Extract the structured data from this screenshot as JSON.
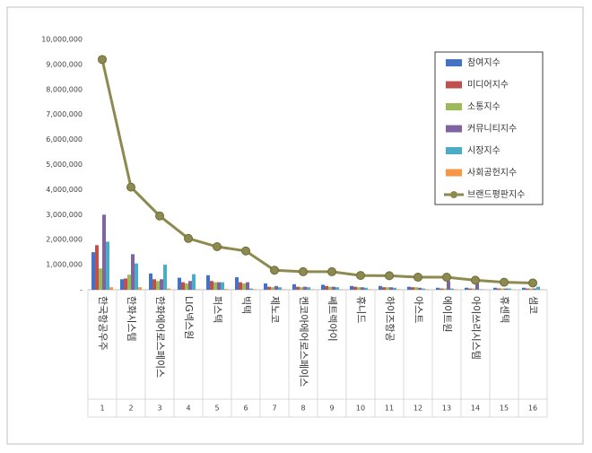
{
  "chart_data": {
    "type": "bar-line",
    "categories": [
      "한국항공우주",
      "한화시스템",
      "한화에어로스페이스",
      "LIG넥스원",
      "퍼스텍",
      "빅텍",
      "제노코",
      "켄코아에어로스페이스",
      "쎄트렉아이",
      "휴니드",
      "하이즈항공",
      "아스트",
      "에이트원",
      "아이쓰리시스템",
      "휴센텍",
      "샘코"
    ],
    "category_numbers": [
      1,
      2,
      3,
      4,
      5,
      6,
      7,
      8,
      9,
      10,
      11,
      12,
      13,
      14,
      15,
      16
    ],
    "series": [
      {
        "name": "참여지수",
        "color": "#4472c4",
        "type": "bar",
        "values": [
          1500000,
          420000,
          650000,
          480000,
          580000,
          500000,
          250000,
          220000,
          200000,
          150000,
          150000,
          120000,
          80000,
          80000,
          80000,
          80000
        ]
      },
      {
        "name": "미디어지수",
        "color": "#c0504d",
        "type": "bar",
        "values": [
          1780000,
          450000,
          420000,
          300000,
          350000,
          300000,
          120000,
          120000,
          150000,
          120000,
          100000,
          100000,
          50000,
          50000,
          50000,
          50000
        ]
      },
      {
        "name": "소통지수",
        "color": "#9bbb59",
        "type": "bar",
        "values": [
          850000,
          600000,
          350000,
          250000,
          300000,
          250000,
          100000,
          100000,
          120000,
          100000,
          100000,
          100000,
          50000,
          50000,
          50000,
          50000
        ]
      },
      {
        "name": "커뮤니티지수",
        "color": "#8064a2",
        "type": "bar",
        "values": [
          3000000,
          1420000,
          420000,
          350000,
          300000,
          300000,
          150000,
          120000,
          120000,
          100000,
          100000,
          80000,
          350000,
          300000,
          50000,
          50000
        ]
      },
      {
        "name": "시장지수",
        "color": "#4bacc6",
        "type": "bar",
        "values": [
          1920000,
          1050000,
          1000000,
          620000,
          300000,
          50000,
          100000,
          100000,
          100000,
          80000,
          80000,
          50000,
          50000,
          20000,
          50000,
          120000
        ]
      },
      {
        "name": "사회공헌지수",
        "color": "#f79646",
        "type": "bar",
        "values": [
          100000,
          100000,
          50000,
          20000,
          30000,
          20000,
          20000,
          20000,
          20000,
          20000,
          20000,
          20000,
          20000,
          10000,
          10000,
          10000
        ]
      },
      {
        "name": "브랜드평판지수",
        "color": "#8c8a4e",
        "type": "line",
        "values": [
          9200000,
          4100000,
          2950000,
          2050000,
          1720000,
          1550000,
          780000,
          720000,
          720000,
          570000,
          560000,
          500000,
          500000,
          380000,
          300000,
          270000
        ]
      }
    ],
    "ylim": [
      0,
      10000000
    ],
    "yticks": [
      {
        "value": 0,
        "label": "-"
      },
      {
        "value": 1000000,
        "label": "1,000,000"
      },
      {
        "value": 2000000,
        "label": "2,000,000"
      },
      {
        "value": 3000000,
        "label": "3,000,000"
      },
      {
        "value": 4000000,
        "label": "4,000,000"
      },
      {
        "value": 5000000,
        "label": "5,000,000"
      },
      {
        "value": 6000000,
        "label": "6,000,000"
      },
      {
        "value": 7000000,
        "label": "7,000,000"
      },
      {
        "value": 8000000,
        "label": "8,000,000"
      },
      {
        "value": 9000000,
        "label": "9,000,000"
      },
      {
        "value": 10000000,
        "label": "10,000,000"
      }
    ],
    "grid": false,
    "legend": "top-right"
  }
}
